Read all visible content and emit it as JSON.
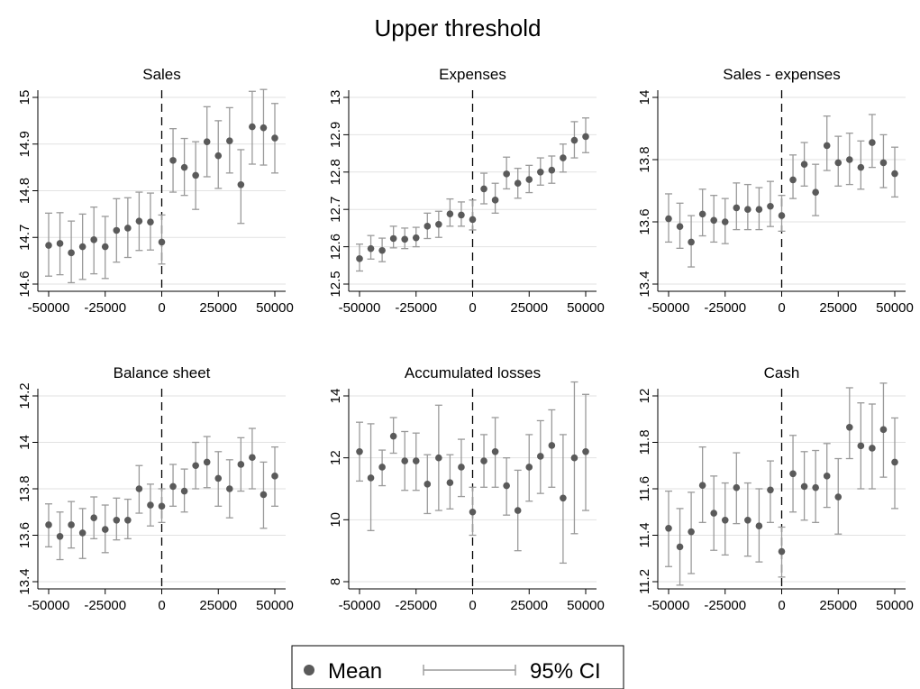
{
  "title": "Upper threshold",
  "legend": {
    "mean_label": "Mean",
    "ci_label": "95% CI",
    "position": "bottom",
    "box": true
  },
  "colors": {
    "point": "#5a5a5a",
    "ci": "#9a9a9a",
    "grid": "#e2e2e2",
    "threshold": "#000000"
  },
  "chart_data": [
    {
      "type": "scatter",
      "title": "Sales",
      "xlim": [
        -50000,
        50000
      ],
      "xticks": [
        -50000,
        -25000,
        0,
        25000,
        50000
      ],
      "ylim": [
        14.6,
        15.0
      ],
      "yticks": [
        14.6,
        14.7,
        14.8,
        14.9,
        15.0
      ],
      "yticklabels": [
        "14.6",
        "14.7",
        "14.8",
        "14.9",
        "15"
      ],
      "threshold_x": 0,
      "x": [
        -50000,
        -45000,
        -40000,
        -35000,
        -30000,
        -25000,
        -20000,
        -15000,
        -10000,
        -5000,
        0,
        5000,
        10000,
        15000,
        20000,
        25000,
        30000,
        35000,
        40000,
        45000,
        50000
      ],
      "mean": [
        14.683,
        14.687,
        14.667,
        14.68,
        14.695,
        14.68,
        14.715,
        14.72,
        14.735,
        14.733,
        14.69,
        14.865,
        14.85,
        14.833,
        14.905,
        14.875,
        14.907,
        14.813,
        14.937,
        14.935,
        14.913
      ],
      "ci_low": [
        14.617,
        14.62,
        14.603,
        14.61,
        14.622,
        14.612,
        14.647,
        14.657,
        14.672,
        14.673,
        14.643,
        14.797,
        14.79,
        14.76,
        14.83,
        14.805,
        14.838,
        14.73,
        14.857,
        14.855,
        14.838
      ],
      "ci_high": [
        14.752,
        14.753,
        14.735,
        14.75,
        14.765,
        14.745,
        14.783,
        14.785,
        14.797,
        14.795,
        14.748,
        14.933,
        14.912,
        14.905,
        14.98,
        14.95,
        14.978,
        14.888,
        15.013,
        15.017,
        14.987
      ]
    },
    {
      "type": "scatter",
      "title": "Expenses",
      "xlim": [
        -50000,
        50000
      ],
      "xticks": [
        -50000,
        -25000,
        0,
        25000,
        50000
      ],
      "ylim": [
        12.5,
        13.0
      ],
      "yticks": [
        12.5,
        12.6,
        12.7,
        12.8,
        12.9,
        13.0
      ],
      "yticklabels": [
        "12.5",
        "12.6",
        "12.7",
        "12.8",
        "12.9",
        "13"
      ],
      "threshold_x": 0,
      "x": [
        -50000,
        -45000,
        -40000,
        -35000,
        -30000,
        -25000,
        -20000,
        -15000,
        -10000,
        -5000,
        0,
        5000,
        10000,
        15000,
        20000,
        25000,
        30000,
        35000,
        40000,
        45000,
        50000
      ],
      "mean": [
        12.568,
        12.595,
        12.59,
        12.622,
        12.62,
        12.624,
        12.655,
        12.66,
        12.688,
        12.685,
        12.673,
        12.755,
        12.725,
        12.795,
        12.77,
        12.78,
        12.8,
        12.805,
        12.838,
        12.885,
        12.895
      ],
      "ci_low": [
        12.535,
        12.567,
        12.56,
        12.597,
        12.595,
        12.6,
        12.622,
        12.625,
        12.655,
        12.655,
        12.645,
        12.715,
        12.69,
        12.755,
        12.73,
        12.745,
        12.765,
        12.77,
        12.8,
        12.838,
        12.852
      ],
      "ci_high": [
        12.607,
        12.63,
        12.623,
        12.655,
        12.65,
        12.652,
        12.69,
        12.695,
        12.728,
        12.72,
        12.725,
        12.797,
        12.77,
        12.84,
        12.81,
        12.818,
        12.838,
        12.843,
        12.875,
        12.935,
        12.945
      ]
    },
    {
      "type": "scatter",
      "title": "Sales - expenses",
      "xlim": [
        -50000,
        50000
      ],
      "xticks": [
        -50000,
        -25000,
        0,
        25000,
        50000
      ],
      "ylim": [
        13.4,
        14.0
      ],
      "yticks": [
        13.4,
        13.6,
        13.8,
        14.0
      ],
      "yticklabels": [
        "13.4",
        "13.6",
        "13.8",
        "14"
      ],
      "threshold_x": 0,
      "x": [
        -50000,
        -45000,
        -40000,
        -35000,
        -30000,
        -25000,
        -20000,
        -15000,
        -10000,
        -5000,
        0,
        5000,
        10000,
        15000,
        20000,
        25000,
        30000,
        35000,
        40000,
        45000,
        50000
      ],
      "mean": [
        13.61,
        13.585,
        13.535,
        13.625,
        13.605,
        13.6,
        13.645,
        13.64,
        13.64,
        13.65,
        13.62,
        13.735,
        13.785,
        13.695,
        13.845,
        13.79,
        13.8,
        13.775,
        13.855,
        13.79,
        13.755
      ],
      "ci_low": [
        13.535,
        13.515,
        13.455,
        13.555,
        13.535,
        13.53,
        13.575,
        13.575,
        13.575,
        13.585,
        13.57,
        13.675,
        13.715,
        13.62,
        13.765,
        13.715,
        13.72,
        13.705,
        13.775,
        13.71,
        13.68
      ],
      "ci_high": [
        13.69,
        13.66,
        13.62,
        13.705,
        13.685,
        13.675,
        13.725,
        13.72,
        13.71,
        13.73,
        13.685,
        13.815,
        13.855,
        13.785,
        13.94,
        13.875,
        13.885,
        13.86,
        13.945,
        13.88,
        13.84
      ]
    },
    {
      "type": "scatter",
      "title": "Balance sheet",
      "xlim": [
        -50000,
        50000
      ],
      "xticks": [
        -50000,
        -25000,
        0,
        25000,
        50000
      ],
      "ylim": [
        13.4,
        14.2
      ],
      "yticks": [
        13.4,
        13.6,
        13.8,
        14.0,
        14.2
      ],
      "yticklabels": [
        "13.4",
        "13.6",
        "13.8",
        "14",
        "14.2"
      ],
      "threshold_x": 0,
      "x": [
        -50000,
        -45000,
        -40000,
        -35000,
        -30000,
        -25000,
        -20000,
        -15000,
        -10000,
        -5000,
        0,
        5000,
        10000,
        15000,
        20000,
        25000,
        30000,
        35000,
        40000,
        45000,
        50000
      ],
      "mean": [
        13.645,
        13.595,
        13.645,
        13.61,
        13.675,
        13.625,
        13.665,
        13.665,
        13.8,
        13.73,
        13.725,
        13.81,
        13.79,
        13.9,
        13.915,
        13.845,
        13.8,
        13.905,
        13.935,
        13.775,
        13.855
      ],
      "ci_low": [
        13.55,
        13.495,
        13.545,
        13.5,
        13.585,
        13.525,
        13.58,
        13.585,
        13.695,
        13.64,
        13.655,
        13.725,
        13.7,
        13.8,
        13.805,
        13.725,
        13.675,
        13.79,
        13.8,
        13.63,
        13.725
      ],
      "ci_high": [
        13.735,
        13.7,
        13.745,
        13.715,
        13.765,
        13.73,
        13.76,
        13.755,
        13.9,
        13.82,
        13.8,
        13.905,
        13.885,
        14.0,
        14.025,
        13.96,
        13.925,
        14.02,
        14.06,
        13.915,
        13.98
      ]
    },
    {
      "type": "scatter",
      "title": "Accumulated losses",
      "xlim": [
        -50000,
        50000
      ],
      "xticks": [
        -50000,
        -25000,
        0,
        25000,
        50000
      ],
      "ylim": [
        8,
        14
      ],
      "yticks": [
        8,
        10,
        12,
        14
      ],
      "yticklabels": [
        "8",
        "10",
        "12",
        "14"
      ],
      "threshold_x": 0,
      "x": [
        -50000,
        -45000,
        -40000,
        -35000,
        -30000,
        -25000,
        -20000,
        -15000,
        -10000,
        -5000,
        0,
        5000,
        10000,
        15000,
        20000,
        25000,
        30000,
        35000,
        40000,
        45000,
        50000
      ],
      "mean": [
        12.2,
        11.35,
        11.7,
        12.7,
        11.9,
        11.9,
        11.15,
        12.0,
        11.2,
        11.7,
        10.25,
        11.9,
        12.2,
        11.1,
        10.3,
        11.7,
        12.05,
        12.4,
        10.7,
        12.0,
        12.2
      ],
      "ci_low": [
        11.25,
        9.65,
        11.1,
        12.15,
        10.95,
        10.95,
        10.2,
        10.3,
        10.35,
        10.75,
        9.5,
        11.05,
        11.05,
        10.15,
        9.0,
        10.6,
        10.85,
        11.05,
        8.6,
        9.55,
        10.3
      ],
      "ci_high": [
        13.15,
        13.1,
        12.25,
        13.3,
        12.85,
        12.8,
        12.1,
        13.7,
        12.1,
        12.6,
        11.05,
        12.75,
        13.3,
        12.0,
        11.6,
        12.75,
        13.2,
        13.55,
        12.75,
        14.45,
        14.05
      ]
    },
    {
      "type": "scatter",
      "title": "Cash",
      "xlim": [
        -50000,
        50000
      ],
      "xticks": [
        -50000,
        -25000,
        0,
        25000,
        50000
      ],
      "ylim": [
        11.2,
        12.0
      ],
      "yticks": [
        11.2,
        11.4,
        11.6,
        11.8,
        12.0
      ],
      "yticklabels": [
        "11.2",
        "11.4",
        "11.6",
        "11.8",
        "12"
      ],
      "threshold_x": 0,
      "x": [
        -50000,
        -45000,
        -40000,
        -35000,
        -30000,
        -25000,
        -20000,
        -15000,
        -10000,
        -5000,
        0,
        5000,
        10000,
        15000,
        20000,
        25000,
        30000,
        35000,
        40000,
        45000,
        50000
      ],
      "mean": [
        11.43,
        11.35,
        11.415,
        11.615,
        11.495,
        11.465,
        11.605,
        11.465,
        11.44,
        11.595,
        11.33,
        11.665,
        11.61,
        11.605,
        11.655,
        11.565,
        11.865,
        11.785,
        11.775,
        11.855,
        11.715
      ],
      "ci_low": [
        11.265,
        11.185,
        11.235,
        11.455,
        11.335,
        11.315,
        11.45,
        11.31,
        11.285,
        11.455,
        11.22,
        11.5,
        11.465,
        11.455,
        11.52,
        11.405,
        11.73,
        11.6,
        11.6,
        11.65,
        11.515
      ],
      "ci_high": [
        11.59,
        11.515,
        11.585,
        11.78,
        11.655,
        11.625,
        11.755,
        11.625,
        11.6,
        11.72,
        11.435,
        11.83,
        11.76,
        11.765,
        11.795,
        11.73,
        12.035,
        11.97,
        11.965,
        12.055,
        11.905
      ]
    }
  ]
}
